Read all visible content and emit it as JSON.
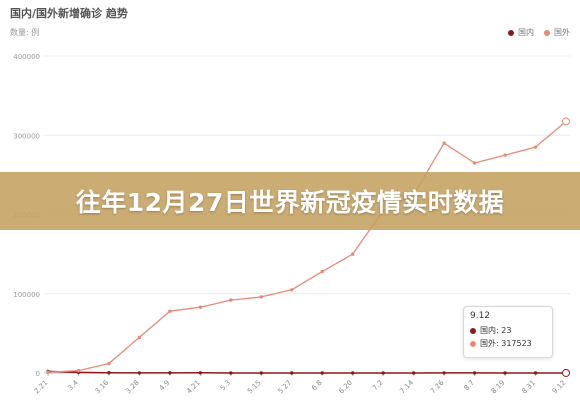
{
  "chart_data": {
    "type": "line",
    "title": "国内/国外新增确诊 趋势",
    "unit_label": "数量: 例",
    "ylim": [
      0,
      400000
    ],
    "yticks": [
      0,
      100000,
      200000,
      300000,
      400000
    ],
    "ytick_labels": [
      "0",
      "100000",
      "200000",
      "300000",
      "400000"
    ],
    "categories": [
      "2.21",
      "3.4",
      "3.16",
      "3.28",
      "4.9",
      "4.21",
      "5.3",
      "5.15",
      "5.27",
      "6.8",
      "6.20",
      "7.2",
      "7.14",
      "7.26",
      "8.7",
      "8.19",
      "8.31",
      "9.12"
    ],
    "grid": true,
    "legend_position": "top-right",
    "series": [
      {
        "name": "国内",
        "color": "#8b1a1a",
        "values": [
          2000,
          800,
          300,
          100,
          150,
          200,
          50,
          30,
          20,
          20,
          25,
          30,
          40,
          100,
          80,
          40,
          30,
          23
        ]
      },
      {
        "name": "国外",
        "color": "#e88a74",
        "values": [
          1000,
          3000,
          12000,
          45000,
          78000,
          83000,
          92000,
          96000,
          105000,
          128000,
          150000,
          205000,
          225000,
          290000,
          265000,
          275000,
          285000,
          317523
        ]
      }
    ]
  },
  "tooltip": {
    "date": "9.12",
    "rows": [
      {
        "label": "国内: 23"
      },
      {
        "label": "国外: 317523"
      }
    ]
  },
  "banner": {
    "text": "往年12月27日世界新冠疫情实时数据"
  }
}
